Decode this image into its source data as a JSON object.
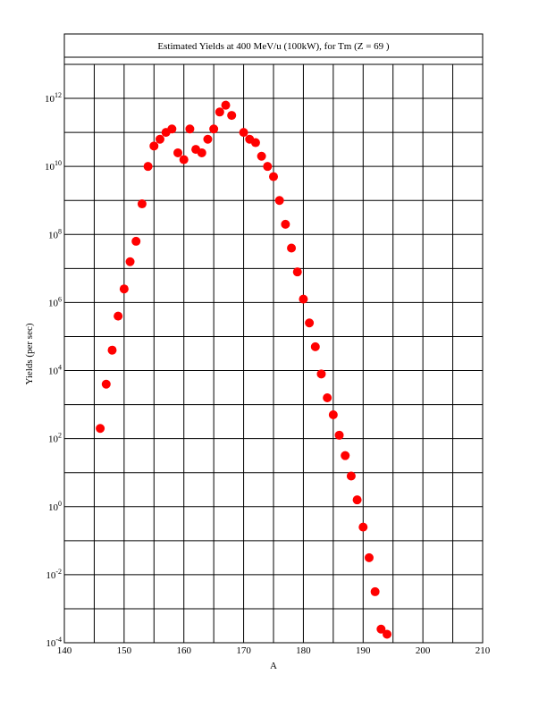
{
  "chart_data": {
    "type": "scatter",
    "title": "Estimated Yields at 400 MeV/u (100kW), for Tm  (Z = 69 )",
    "xlabel": "A",
    "ylabel": "Yields (per sec)",
    "xlim": [
      140,
      210
    ],
    "ylim_log10": [
      -4,
      13
    ],
    "y_scale": "log",
    "grid": true,
    "x_ticks": [
      140,
      150,
      160,
      170,
      180,
      190,
      200,
      210
    ],
    "y_tick_exponents": [
      -4,
      -2,
      0,
      2,
      4,
      6,
      8,
      10,
      12
    ],
    "y_tick_base": "10",
    "marker_color": "#ff0000",
    "x": [
      146,
      147,
      148,
      149,
      150,
      151,
      152,
      153,
      154,
      155,
      156,
      157,
      158,
      159,
      160,
      161,
      162,
      163,
      164,
      165,
      166,
      167,
      168,
      170,
      171,
      172,
      173,
      174,
      175,
      176,
      177,
      178,
      179,
      180,
      181,
      182,
      183,
      184,
      185,
      186,
      187,
      188,
      189,
      190,
      191,
      192,
      193,
      194
    ],
    "y_log10": [
      2.3,
      3.6,
      4.6,
      5.6,
      6.4,
      7.2,
      7.8,
      8.9,
      10.0,
      10.6,
      10.8,
      11.0,
      11.1,
      10.4,
      10.2,
      11.1,
      10.5,
      10.4,
      10.8,
      11.1,
      11.6,
      11.8,
      11.5,
      11.0,
      10.8,
      10.7,
      10.3,
      10.0,
      9.7,
      9.0,
      8.3,
      7.6,
      6.9,
      6.1,
      5.4,
      4.7,
      3.9,
      3.2,
      2.7,
      2.1,
      1.5,
      0.9,
      0.2,
      -0.6,
      -1.5,
      -2.5,
      -3.6,
      -3.75
    ]
  }
}
